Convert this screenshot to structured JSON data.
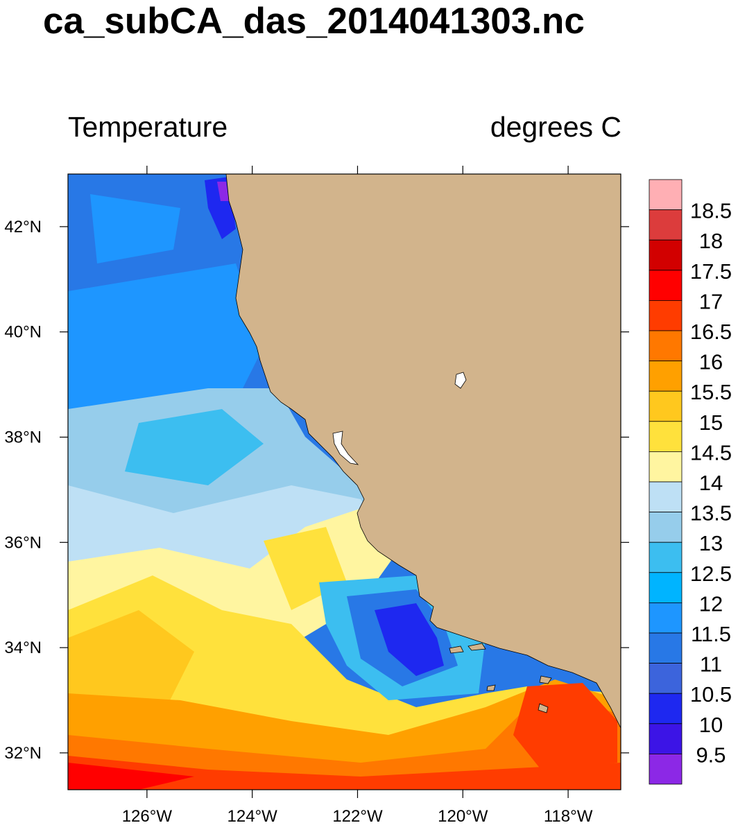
{
  "title": "ca_subCA_das_2014041303.nc",
  "left_subtitle": "Temperature",
  "right_subtitle": "degrees C",
  "map": {
    "lon_range": [
      -127.5,
      -117.0
    ],
    "lat_range": [
      31.3,
      43.0
    ],
    "land_color": "#D2B48C",
    "x_ticks": [
      {
        "value": -126,
        "label": "126°W"
      },
      {
        "value": -124,
        "label": "124°W"
      },
      {
        "value": -122,
        "label": "122°W"
      },
      {
        "value": -120,
        "label": "120°W"
      },
      {
        "value": -118,
        "label": "118°W"
      }
    ],
    "y_ticks": [
      {
        "value": 42,
        "label": "42°N"
      },
      {
        "value": 40,
        "label": "40°N"
      },
      {
        "value": 38,
        "label": "38°N"
      },
      {
        "value": 36,
        "label": "36°N"
      },
      {
        "value": 34,
        "label": "34°N"
      },
      {
        "value": 32,
        "label": "32°N"
      }
    ]
  },
  "colorbar": {
    "labels": [
      "18.5",
      "18",
      "17.5",
      "17",
      "16.5",
      "16",
      "15.5",
      "15",
      "14.5",
      "14",
      "13.5",
      "13",
      "12.5",
      "12",
      "11.5",
      "11",
      "10.5",
      "10",
      "9.5"
    ],
    "colors_top_to_bottom": [
      "#FFAFB4",
      "#DC3C3C",
      "#D20000",
      "#FF0000",
      "#FF3C00",
      "#FF7800",
      "#FFA000",
      "#FFC81E",
      "#FFE13C",
      "#FFF5A0",
      "#BEE0F5",
      "#96CDEB",
      "#3CBEF0",
      "#00B4FF",
      "#1E96FF",
      "#2878E6",
      "#3C64DC",
      "#1E28F0",
      "#3C14E6",
      "#8C28E6"
    ]
  }
}
